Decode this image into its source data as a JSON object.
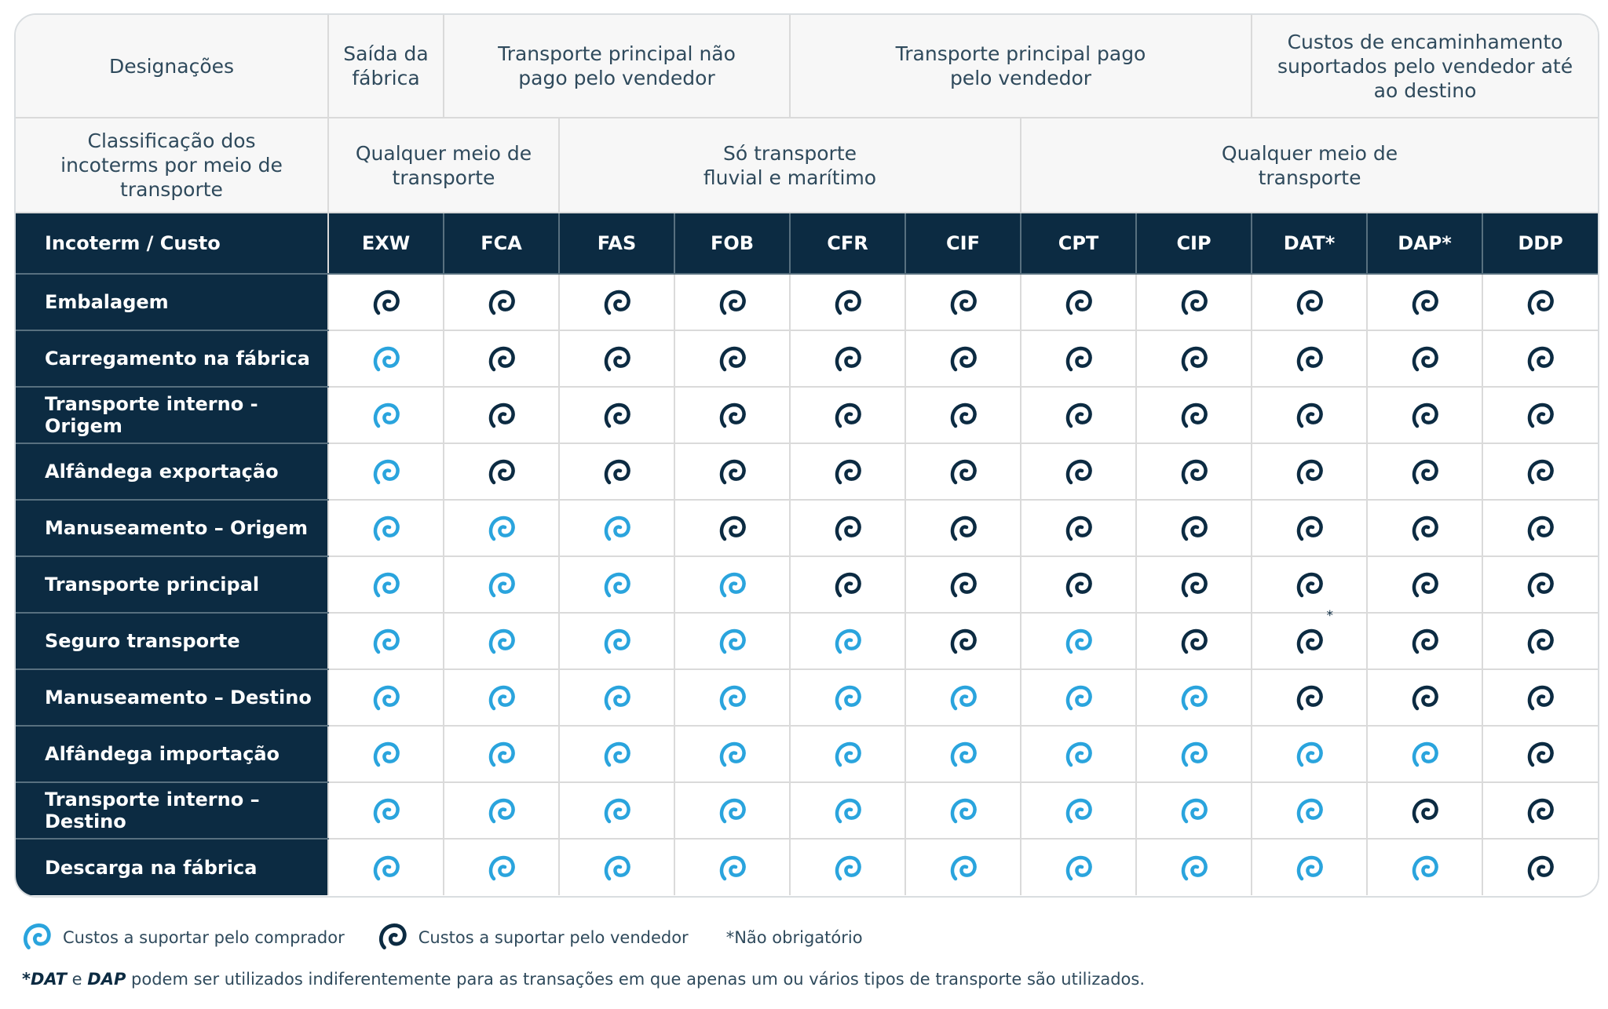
{
  "colors": {
    "buyer": "#2aa4dd",
    "seller": "#0c2b42",
    "header_bg": "#0c2b42"
  },
  "header": {
    "designations_label": "Designações",
    "saida_label": "Saída da fábrica",
    "nao_pago_label": "Transporte principal não pago pelo vendedor",
    "pago_label": "Transporte principal pago pelo vendedor",
    "custos_destino_label": "Custos de encaminhamento suportados pelo vendedor até ao destino",
    "classificacao_label": "Classificação dos incoterms por meio de transporte",
    "qualquer_meio_1": "Qualquer meio de transporte",
    "so_transporte": "Só transporte fluvial e marítimo",
    "qualquer_meio_2": "Qualquer meio de transporte",
    "incoterm_custo": "Incoterm / Custo"
  },
  "incoterms": [
    "EXW",
    "FCA",
    "FAS",
    "FOB",
    "CFR",
    "CIF",
    "CPT",
    "CIP",
    "DAT*",
    "DAP*",
    "DDP"
  ],
  "rows": [
    {
      "label": "Embalagem",
      "costs": [
        "S",
        "S",
        "S",
        "S",
        "S",
        "S",
        "S",
        "S",
        "S",
        "S",
        "S"
      ]
    },
    {
      "label": "Carregamento na fábrica",
      "costs": [
        "B",
        "S",
        "S",
        "S",
        "S",
        "S",
        "S",
        "S",
        "S",
        "S",
        "S"
      ]
    },
    {
      "label": "Transporte interno - Origem",
      "costs": [
        "B",
        "S",
        "S",
        "S",
        "S",
        "S",
        "S",
        "S",
        "S",
        "S",
        "S"
      ]
    },
    {
      "label": "Alfândega exportação",
      "costs": [
        "B",
        "S",
        "S",
        "S",
        "S",
        "S",
        "S",
        "S",
        "S",
        "S",
        "S"
      ]
    },
    {
      "label": "Manuseamento – Origem",
      "costs": [
        "B",
        "B",
        "B",
        "S",
        "S",
        "S",
        "S",
        "S",
        "S",
        "S",
        "S"
      ]
    },
    {
      "label": "Transporte principal",
      "costs": [
        "B",
        "B",
        "B",
        "B",
        "S",
        "S",
        "S",
        "S",
        "S",
        "S",
        "S"
      ]
    },
    {
      "label": "Seguro transporte",
      "costs": [
        "B",
        "B",
        "B",
        "B",
        "B",
        "S",
        "B",
        "S",
        "S*",
        "S",
        "S"
      ]
    },
    {
      "label": "Manuseamento – Destino",
      "costs": [
        "B",
        "B",
        "B",
        "B",
        "B",
        "B",
        "B",
        "B",
        "S",
        "S",
        "S"
      ]
    },
    {
      "label": "Alfândega importação",
      "costs": [
        "B",
        "B",
        "B",
        "B",
        "B",
        "B",
        "B",
        "B",
        "B",
        "B",
        "S"
      ]
    },
    {
      "label": "Transporte interno – Destino",
      "costs": [
        "B",
        "B",
        "B",
        "B",
        "B",
        "B",
        "B",
        "B",
        "B",
        "S",
        "S"
      ]
    },
    {
      "label": "Descarga na fábrica",
      "costs": [
        "B",
        "B",
        "B",
        "B",
        "B",
        "B",
        "B",
        "B",
        "B",
        "B",
        "S"
      ]
    }
  ],
  "legend": {
    "buyer_label": "Custos a suportar pelo comprador",
    "seller_label": "Custos a suportar pelo vendedor",
    "optional_note": "*Não obrigatório",
    "buyer_icon": "spiral-icon",
    "seller_icon": "spiral-icon"
  },
  "footnote": {
    "dat": "*DAT",
    "and": " e ",
    "dap": "DAP",
    "text": " podem ser utilizados indiferentemente para as transações em que apenas um ou vários tipos de transporte são utilizados."
  }
}
